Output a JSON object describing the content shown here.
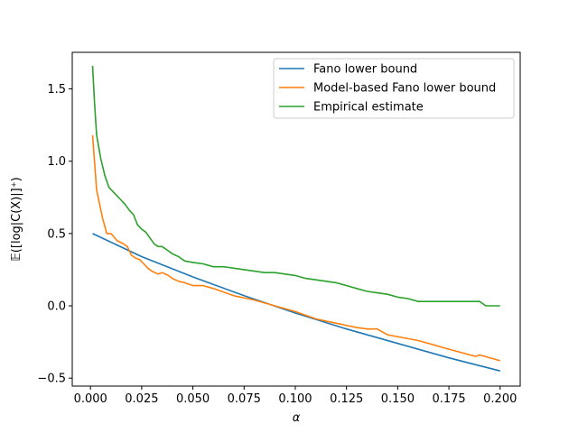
{
  "chart_data": {
    "type": "line",
    "xlabel": "α",
    "ylabel": "𝔼([log|C(X)|]⁺)",
    "xlim": [
      -0.0089,
      0.2098
    ],
    "ylim": [
      -0.555,
      1.753
    ],
    "xticks": [
      0.0,
      0.025,
      0.05,
      0.075,
      0.1,
      0.125,
      0.15,
      0.175,
      0.2
    ],
    "xtick_labels": [
      "0.000",
      "0.025",
      "0.050",
      "0.075",
      "0.100",
      "0.125",
      "0.150",
      "0.175",
      "0.200"
    ],
    "yticks": [
      -0.5,
      0.0,
      0.5,
      1.0,
      1.5
    ],
    "ytick_labels": [
      "−0.5",
      "0.0",
      "0.5",
      "1.0",
      "1.5"
    ],
    "grid": false,
    "legend_position": "top-right",
    "series": [
      {
        "name": "Fano lower bound",
        "color": "#1f77b4",
        "x": [
          0.001,
          0.025,
          0.05,
          0.075,
          0.1,
          0.125,
          0.15,
          0.175,
          0.2
        ],
        "y": [
          0.5,
          0.34,
          0.2,
          0.07,
          -0.05,
          -0.16,
          -0.26,
          -0.36,
          -0.45
        ]
      },
      {
        "name": "Model-based Fano lower bound",
        "color": "#ff7f0e",
        "x": [
          0.001,
          0.003,
          0.006,
          0.008,
          0.01,
          0.013,
          0.016,
          0.018,
          0.02,
          0.022,
          0.024,
          0.026,
          0.028,
          0.03,
          0.033,
          0.035,
          0.038,
          0.04,
          0.043,
          0.046,
          0.05,
          0.055,
          0.06,
          0.07,
          0.08,
          0.09,
          0.1,
          0.11,
          0.12,
          0.13,
          0.135,
          0.14,
          0.145,
          0.16,
          0.175,
          0.188,
          0.19,
          0.2
        ],
        "y": [
          1.18,
          0.8,
          0.6,
          0.5,
          0.5,
          0.45,
          0.43,
          0.41,
          0.35,
          0.33,
          0.32,
          0.29,
          0.26,
          0.24,
          0.22,
          0.23,
          0.21,
          0.19,
          0.17,
          0.16,
          0.14,
          0.14,
          0.12,
          0.07,
          0.04,
          0.0,
          -0.04,
          -0.09,
          -0.12,
          -0.15,
          -0.16,
          -0.16,
          -0.2,
          -0.24,
          -0.3,
          -0.35,
          -0.34,
          -0.38
        ]
      },
      {
        "name": "Empirical estimate",
        "color": "#2ca02c",
        "x": [
          0.001,
          0.002,
          0.003,
          0.005,
          0.007,
          0.009,
          0.011,
          0.013,
          0.015,
          0.017,
          0.019,
          0.021,
          0.023,
          0.025,
          0.027,
          0.029,
          0.031,
          0.033,
          0.035,
          0.037,
          0.04,
          0.043,
          0.046,
          0.05,
          0.055,
          0.06,
          0.065,
          0.07,
          0.075,
          0.08,
          0.085,
          0.09,
          0.095,
          0.1,
          0.105,
          0.11,
          0.115,
          0.12,
          0.125,
          0.13,
          0.135,
          0.14,
          0.145,
          0.15,
          0.155,
          0.16,
          0.17,
          0.18,
          0.19,
          0.193,
          0.2
        ],
        "y": [
          1.66,
          1.4,
          1.18,
          1.02,
          0.9,
          0.82,
          0.79,
          0.76,
          0.73,
          0.7,
          0.66,
          0.63,
          0.56,
          0.53,
          0.51,
          0.47,
          0.43,
          0.41,
          0.41,
          0.39,
          0.36,
          0.34,
          0.31,
          0.3,
          0.29,
          0.27,
          0.27,
          0.26,
          0.25,
          0.24,
          0.23,
          0.23,
          0.22,
          0.21,
          0.19,
          0.18,
          0.17,
          0.16,
          0.14,
          0.12,
          0.1,
          0.09,
          0.08,
          0.06,
          0.05,
          0.03,
          0.03,
          0.03,
          0.03,
          0.0,
          0.0
        ]
      }
    ]
  }
}
